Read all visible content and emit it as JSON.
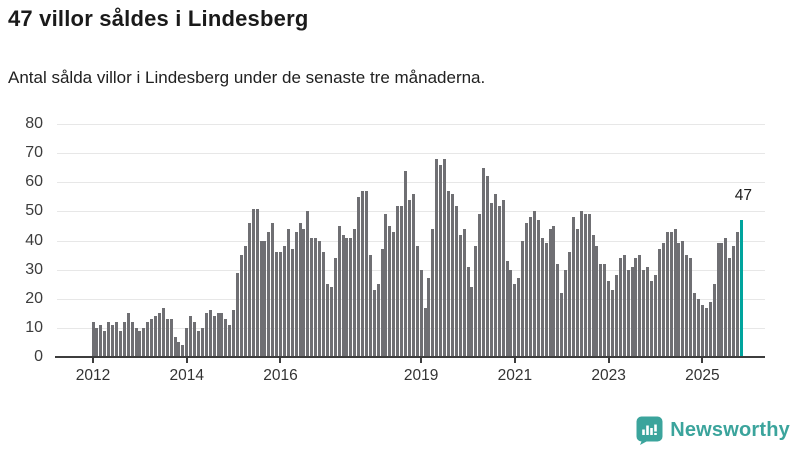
{
  "header": {
    "title": "47 villor såldes i Lindesberg",
    "subtitle": "Antal sålda villor i Lindesberg under de senaste tre månaderna."
  },
  "chart_data": {
    "type": "bar",
    "title": "47 villor såldes i Lindesberg",
    "subtitle": "Antal sålda villor i Lindesberg under de senaste tre månaderna.",
    "xlabel": "",
    "ylabel": "",
    "period": "monthly",
    "x_start": "2012-01",
    "x_end": "2025-11",
    "ylim": [
      0,
      80
    ],
    "yticks": [
      0,
      10,
      20,
      30,
      40,
      50,
      60,
      70,
      80
    ],
    "grid": true,
    "legend_position": "none",
    "xticks": [
      {
        "label": "2012",
        "month_index": 0
      },
      {
        "label": "2014",
        "month_index": 24
      },
      {
        "label": "2016",
        "month_index": 48
      },
      {
        "label": "2019",
        "month_index": 84
      },
      {
        "label": "2021",
        "month_index": 108
      },
      {
        "label": "2023",
        "month_index": 132
      },
      {
        "label": "2025",
        "month_index": 156
      }
    ],
    "values": [
      12,
      10,
      11,
      9,
      12,
      11,
      12,
      9,
      12,
      15,
      12,
      10,
      9,
      10,
      12,
      13,
      14,
      15,
      17,
      13,
      13,
      7,
      5,
      4,
      10,
      14,
      12,
      9,
      10,
      15,
      16,
      14,
      15,
      15,
      13,
      11,
      16,
      29,
      35,
      38,
      46,
      51,
      51,
      40,
      40,
      43,
      46,
      36,
      36,
      38,
      44,
      37,
      43,
      46,
      44,
      50,
      41,
      41,
      40,
      36,
      25,
      24,
      34,
      45,
      42,
      41,
      41,
      44,
      55,
      57,
      57,
      35,
      23,
      25,
      37,
      49,
      45,
      43,
      52,
      52,
      64,
      54,
      56,
      38,
      30,
      17,
      27,
      44,
      68,
      66,
      68,
      57,
      56,
      52,
      42,
      44,
      31,
      24,
      38,
      49,
      65,
      62,
      53,
      56,
      52,
      54,
      33,
      30,
      25,
      27,
      40,
      46,
      48,
      50,
      47,
      41,
      39,
      44,
      45,
      32,
      22,
      30,
      36,
      48,
      44,
      50,
      49,
      49,
      42,
      38,
      32,
      32,
      26,
      23,
      28,
      34,
      35,
      30,
      31,
      34,
      35,
      30,
      31,
      26,
      28,
      37,
      39,
      43,
      43,
      44,
      39,
      40,
      35,
      34,
      22,
      20,
      18,
      17,
      19,
      25,
      39,
      39,
      41,
      34,
      38,
      43,
      47
    ],
    "highlight": {
      "index": 166,
      "value": 47,
      "label": "47"
    }
  },
  "annotation": {
    "value_label": "47"
  },
  "footer": {
    "brand": "Newsworthy"
  },
  "colors": {
    "bar_gray": "#6f6f73",
    "accent_teal": "#00a49d",
    "logo_teal": "#3ba49c",
    "gridline": "#e7e7e7",
    "axis": "#3d3d3d"
  }
}
